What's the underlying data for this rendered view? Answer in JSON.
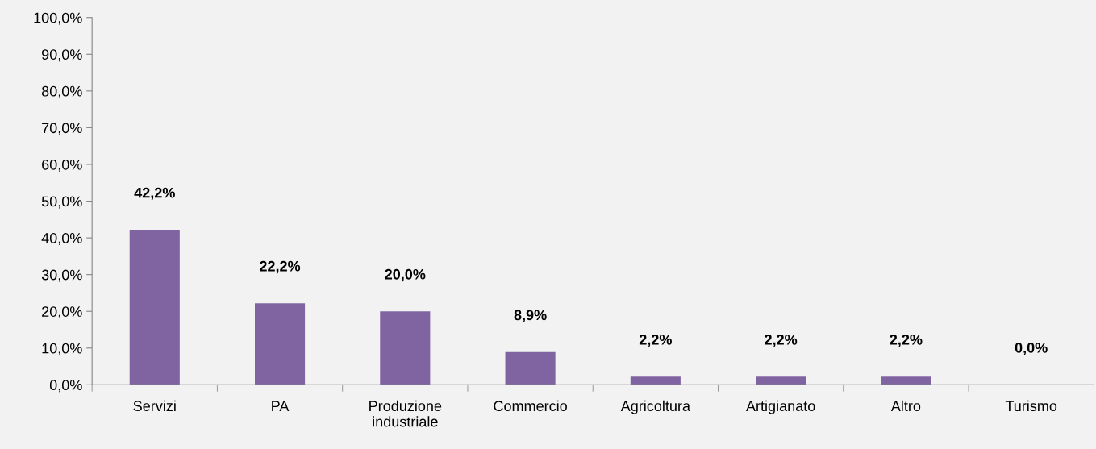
{
  "chart_data": {
    "type": "bar",
    "categories": [
      "Servizi",
      "PA",
      "Produzione\nindustriale",
      "Commercio",
      "Agricoltura",
      "Artigianato",
      "Altro",
      "Turismo"
    ],
    "values": [
      42.2,
      22.2,
      20.0,
      8.9,
      2.2,
      2.2,
      2.2,
      0.0
    ],
    "value_labels": [
      "42,2%",
      "22,2%",
      "20,0%",
      "8,9%",
      "2,2%",
      "2,2%",
      "2,2%",
      "0,0%"
    ],
    "color": "#8064a2",
    "ylim": [
      0,
      100
    ],
    "yticks": [
      {
        "value": 0,
        "label": "0,0%"
      },
      {
        "value": 10,
        "label": "10,0%"
      },
      {
        "value": 20,
        "label": "20,0%"
      },
      {
        "value": 30,
        "label": "30,0%"
      },
      {
        "value": 40,
        "label": "40,0%"
      },
      {
        "value": 50,
        "label": "50,0%"
      },
      {
        "value": 60,
        "label": "60,0%"
      },
      {
        "value": 70,
        "label": "70,0%"
      },
      {
        "value": 80,
        "label": "80,0%"
      },
      {
        "value": 90,
        "label": "90,0%"
      },
      {
        "value": 100,
        "label": "100,0%"
      }
    ],
    "grid": false,
    "legend": false
  }
}
